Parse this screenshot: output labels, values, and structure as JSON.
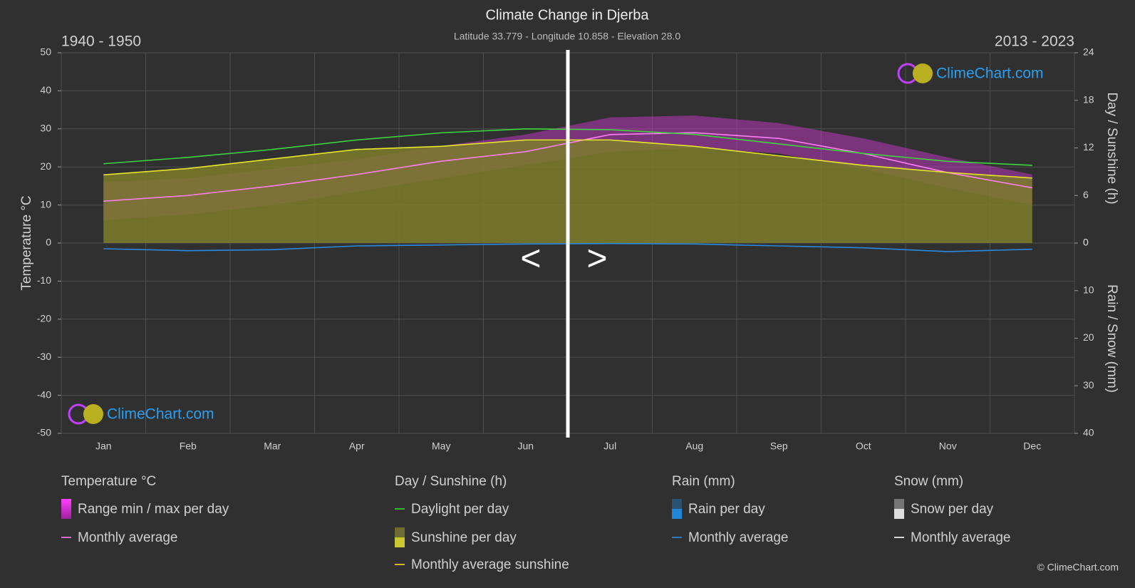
{
  "chart_data": {
    "type": "line",
    "title": "Climate Change in Djerba",
    "subtitle": "Latitude 33.779 - Longitude 10.858 - Elevation 28.0",
    "period_left": "1940 - 1950",
    "period_right": "2013 - 2023",
    "nav_prev": "<",
    "nav_next": ">",
    "logo_text": "ClimeChart.com",
    "copyright": "© ClimeChart.com",
    "y_label": "Temperature °C",
    "y2_label": "Day / Sunshine (h)",
    "y3_label": "Rain / Snow (mm)",
    "categories": [
      "Jan",
      "Feb",
      "Mar",
      "Apr",
      "May",
      "Jun",
      "Jul",
      "Aug",
      "Sep",
      "Oct",
      "Nov",
      "Dec"
    ],
    "ylim": [
      -50,
      50
    ],
    "yticks": [
      -50,
      -40,
      -30,
      -20,
      -10,
      0,
      10,
      20,
      30,
      40,
      50
    ],
    "y2lim": [
      0,
      24
    ],
    "y2ticks": [
      0,
      6,
      12,
      18,
      24
    ],
    "y3lim": [
      0,
      40
    ],
    "y3ticks": [
      0,
      10,
      20,
      30,
      40
    ],
    "grid": true,
    "groups": [
      {
        "title": "Temperature °C",
        "items": [
          {
            "name": "Range min / max per day",
            "color": "#d63ad6",
            "marker": "band",
            "axis": "y",
            "values": [
              16,
              17,
              19.5,
              22,
              25.5,
              28.5,
              33,
              33.5,
              31.5,
              27.5,
              22.5,
              18
            ],
            "low": [
              6,
              7.5,
              10,
              13.5,
              17,
              20.5,
              24,
              25,
              23.5,
              19.5,
              14.5,
              10
            ]
          },
          {
            "name": "Monthly average",
            "color": "#ff7ff0",
            "marker": "line",
            "axis": "y",
            "values": [
              11,
              12.5,
              15,
              18,
              21.5,
              24,
              28.5,
              29,
              27.5,
              23.5,
              18.5,
              14.5
            ]
          }
        ]
      },
      {
        "title": "Day / Sunshine (h)",
        "items": [
          {
            "name": "Daylight per day",
            "color": "#3ed63e",
            "marker": "line",
            "axis": "y2",
            "values": [
              10,
              10.8,
              11.8,
              13,
              13.9,
              14.4,
              14.3,
              13.7,
              12.5,
              11.3,
              10.3,
              9.8
            ]
          },
          {
            "name": "Sunshine per day",
            "color": "#c8c832",
            "marker": "bar"
          },
          {
            "name": "Monthly average sunshine",
            "color": "#e6e62a",
            "marker": "line",
            "axis": "y2",
            "fill": "#7d7d2c",
            "values": [
              8.6,
              9.4,
              10.6,
              11.8,
              12.2,
              13,
              13,
              12.2,
              11,
              9.8,
              8.9,
              8.2
            ]
          }
        ]
      },
      {
        "title": "Rain (mm)",
        "items": [
          {
            "name": "Rain per day",
            "color": "#1f86d8",
            "marker": "bar"
          },
          {
            "name": "Monthly average",
            "color": "#2a8ae0",
            "marker": "line",
            "axis": "y3",
            "values": [
              1.2,
              1.6,
              1.4,
              0.6,
              0.4,
              0.2,
              0.1,
              0.2,
              0.6,
              1,
              1.8,
              1.3
            ]
          }
        ]
      },
      {
        "title": "Snow (mm)",
        "items": [
          {
            "name": "Snow per day",
            "color": "#dddddd",
            "marker": "bar"
          },
          {
            "name": "Monthly average",
            "color": "#ffffff",
            "marker": "line"
          }
        ]
      }
    ]
  }
}
